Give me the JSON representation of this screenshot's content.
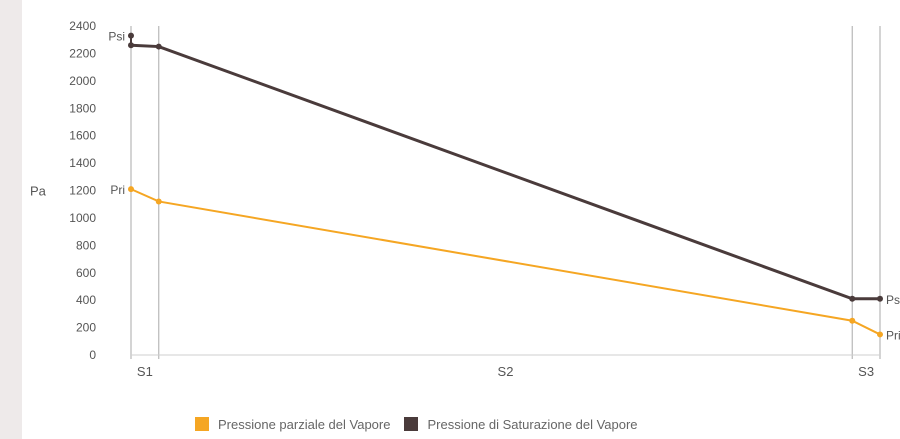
{
  "chart_data": {
    "type": "line",
    "ylabel": "Pa",
    "ylim": [
      0,
      2400
    ],
    "yticks": [
      0,
      200,
      400,
      600,
      800,
      1000,
      1200,
      1400,
      1600,
      1800,
      2000,
      2200,
      2400
    ],
    "x_tick_labels": [
      {
        "label": "S1",
        "x": 0.5
      },
      {
        "label": "S2",
        "x": 13.5
      },
      {
        "label": "S3",
        "x": 26.5
      }
    ],
    "boundaries": [
      0,
      1,
      26,
      27
    ],
    "xlim": [
      0,
      27
    ],
    "series": [
      {
        "name": "Pressione parziale del Vapore",
        "color": "#f5a623",
        "points": [
          [
            0,
            1210
          ],
          [
            1,
            1120
          ],
          [
            26,
            250
          ],
          [
            27,
            150
          ]
        ]
      },
      {
        "name": "Pressione di Saturazione del Vapore",
        "color": "#4a3b3b",
        "points": [
          [
            0,
            2260
          ],
          [
            1,
            2250
          ],
          [
            26,
            410
          ],
          [
            27,
            410
          ]
        ]
      }
    ],
    "annotations": [
      {
        "text": "Psi",
        "x": 0,
        "y": 2330
      },
      {
        "text": "Pri",
        "x": 0,
        "y": 1210
      },
      {
        "text": "Ps",
        "x": 27,
        "y": 410
      },
      {
        "text": "Pri",
        "x": 27,
        "y": 150
      }
    ]
  }
}
